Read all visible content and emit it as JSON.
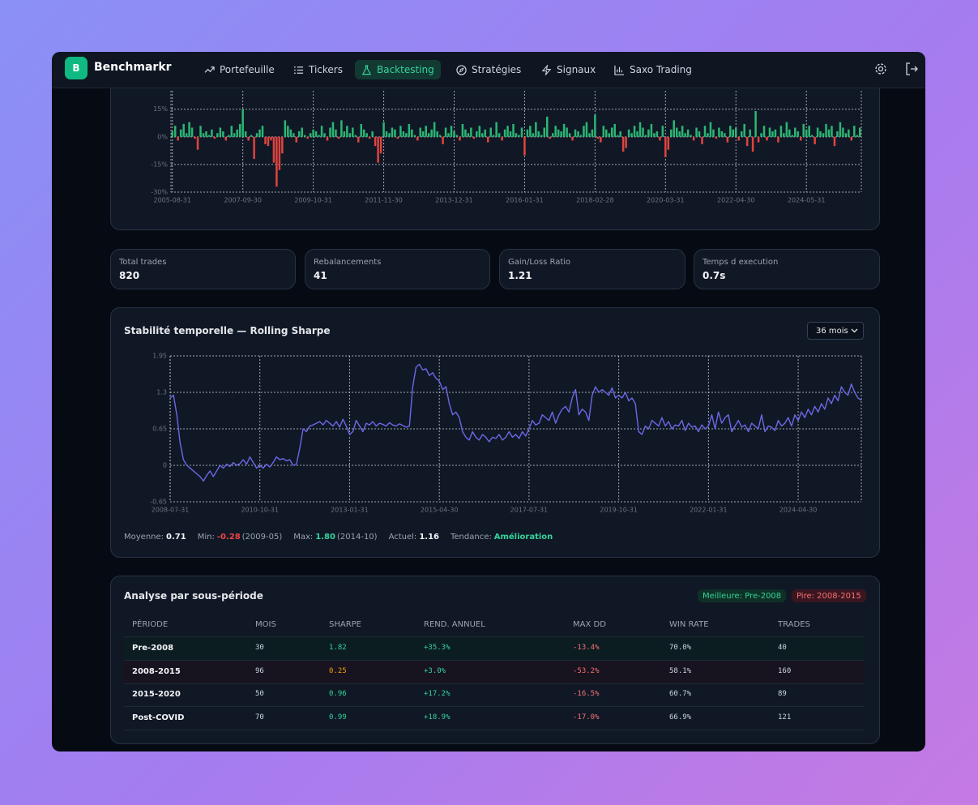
{
  "nav": {
    "logo": "B",
    "brand": "Benchmarkr",
    "items": [
      "Portefeuille",
      "Tickers",
      "Backtesting",
      "Stratégies",
      "Signaux",
      "Saxo Trading"
    ]
  },
  "stats": [
    {
      "label": "Total trades",
      "value": "820"
    },
    {
      "label": "Rebalancements",
      "value": "41"
    },
    {
      "label": "Gain/Loss Ratio",
      "value": "1.21"
    },
    {
      "label": "Temps d execution",
      "value": "0.7s"
    }
  ],
  "sharpe_panel": {
    "select": "36 mois",
    "summary": [
      {
        "label": "Moyenne:",
        "value": "0.71"
      },
      {
        "label": "Min:",
        "value": "-0.28",
        "note": "(2009-05)"
      },
      {
        "label": "Max:",
        "value": "1.80",
        "note": "(2014-10)"
      },
      {
        "label": "Actuel:",
        "value": "1.16"
      },
      {
        "label": "Tendance:",
        "value": "Amélioration"
      }
    ]
  },
  "table": {
    "title": "Analyse par sous-période",
    "badges": [
      "Meilleure: Pre-2008",
      "Pire: 2008-2015"
    ],
    "columns": [
      "PÉRIODE",
      "MOIS",
      "SHARPE",
      "REND. ANNUEL",
      "MAX DD",
      "WIN RATE",
      "TRADES"
    ],
    "rows": [
      [
        "Pre-2008",
        "30",
        "1.82",
        "+35.3%",
        "-13.4%",
        "70.0%",
        "40"
      ],
      [
        "2008-2015",
        "96",
        "0.25",
        "+3.0%",
        "-53.2%",
        "58.1%",
        "160"
      ],
      [
        "2015-2020",
        "50",
        "0.96",
        "+17.2%",
        "-16.5%",
        "60.7%",
        "89"
      ],
      [
        "Post-COVID",
        "70",
        "0.99",
        "+18.9%",
        "-17.0%",
        "66.9%",
        "121"
      ]
    ]
  },
  "chart_data": [
    {
      "type": "bar",
      "colors": {
        "positive": "#2bb673",
        "negative": "#e0443f"
      },
      "grid": true,
      "ylim": [
        -30,
        25
      ],
      "yticks": [
        {
          "value": 15,
          "label": "15%"
        },
        {
          "value": 0,
          "label": "0%"
        },
        {
          "value": -15,
          "label": "-15%"
        },
        {
          "value": -30,
          "label": "-30%"
        }
      ],
      "categories": [
        "2005-08-31",
        null,
        null,
        null,
        null,
        null,
        null,
        null,
        null,
        null,
        null,
        null,
        null,
        null,
        null,
        null,
        null,
        null,
        null,
        null,
        null,
        null,
        null,
        null,
        null,
        "2007-09-30",
        null,
        null,
        null,
        null,
        null,
        null,
        null,
        null,
        null,
        null,
        null,
        null,
        null,
        null,
        null,
        null,
        null,
        null,
        null,
        null,
        null,
        null,
        null,
        null,
        "2009-10-31",
        null,
        null,
        null,
        null,
        null,
        null,
        null,
        null,
        null,
        null,
        null,
        null,
        null,
        null,
        null,
        null,
        null,
        null,
        null,
        null,
        null,
        null,
        null,
        null,
        "2011-11-30",
        null,
        null,
        null,
        null,
        null,
        null,
        null,
        null,
        null,
        null,
        null,
        null,
        null,
        null,
        null,
        null,
        null,
        null,
        null,
        null,
        null,
        null,
        null,
        null,
        "2013-12-31",
        null,
        null,
        null,
        null,
        null,
        null,
        null,
        null,
        null,
        null,
        null,
        null,
        null,
        null,
        null,
        null,
        null,
        null,
        null,
        null,
        null,
        null,
        null,
        null,
        "2016-01-31",
        null,
        null,
        null,
        null,
        null,
        null,
        null,
        null,
        null,
        null,
        null,
        null,
        null,
        null,
        null,
        null,
        null,
        null,
        null,
        null,
        null,
        null,
        null,
        null,
        "2018-02-28",
        null,
        null,
        null,
        null,
        null,
        null,
        null,
        null,
        null,
        null,
        null,
        null,
        null,
        null,
        null,
        null,
        null,
        null,
        null,
        null,
        null,
        null,
        null,
        null,
        "2020-03-31",
        null,
        null,
        null,
        null,
        null,
        null,
        null,
        null,
        null,
        null,
        null,
        null,
        null,
        null,
        null,
        null,
        null,
        null,
        null,
        null,
        null,
        null,
        null,
        null,
        "2022-04-30",
        null,
        null,
        null,
        null,
        null,
        null,
        null,
        null,
        null,
        null,
        null,
        null,
        null,
        null,
        null,
        null,
        null,
        null,
        null,
        null,
        null,
        null,
        null,
        null,
        "2024-05-31",
        null,
        null,
        null,
        null,
        null,
        null,
        null,
        null,
        null,
        null,
        null,
        null,
        null,
        null,
        null,
        null,
        null,
        null,
        null
      ],
      "values": [
        3,
        6,
        -2,
        4,
        7,
        2,
        8,
        5,
        -1,
        -7,
        6,
        2,
        3,
        1,
        4,
        -1,
        2,
        5,
        3,
        -2,
        1,
        6,
        2,
        4,
        7,
        15,
        3,
        -2,
        1,
        -12,
        2,
        4,
        6,
        -4,
        -5,
        -2,
        -14,
        -27,
        -18,
        -9,
        9,
        6,
        4,
        2,
        -3,
        3,
        5,
        1,
        -1,
        2,
        4,
        3,
        1,
        6,
        2,
        -2,
        5,
        8,
        4,
        -1,
        9,
        3,
        6,
        2,
        5,
        1,
        -3,
        7,
        4,
        2,
        -1,
        3,
        -5,
        -14,
        -9,
        8,
        3,
        2,
        5,
        4,
        -1,
        6,
        3,
        2,
        7,
        4,
        1,
        -2,
        5,
        3,
        6,
        2,
        4,
        8,
        3,
        1,
        -4,
        5,
        2,
        6,
        3,
        1,
        -2,
        7,
        4,
        2,
        5,
        -1,
        3,
        6,
        2,
        4,
        -3,
        5,
        1,
        8,
        2,
        -2,
        4,
        6,
        3,
        7,
        2,
        1,
        5,
        -10,
        4,
        6,
        2,
        8,
        3,
        1,
        5,
        11,
        -1,
        2,
        6,
        4,
        3,
        7,
        5,
        2,
        -2,
        4,
        3,
        1,
        6,
        8,
        2,
        4,
        12,
        -1,
        -3,
        6,
        4,
        2,
        5,
        7,
        1,
        3,
        -8,
        -6,
        4,
        2,
        6,
        3,
        8,
        5,
        1,
        4,
        7,
        2,
        3,
        -2,
        6,
        -11,
        -7,
        4,
        9,
        5,
        3,
        6,
        2,
        4,
        1,
        -2,
        5,
        3,
        -4,
        6,
        2,
        8,
        4,
        -1,
        5,
        3,
        2,
        -3,
        6,
        4,
        5,
        -2,
        3,
        7,
        -5,
        4,
        -8,
        14,
        -3,
        2,
        6,
        -2,
        5,
        3,
        4,
        -3,
        6,
        2,
        8,
        4,
        1,
        5,
        3,
        -2,
        7,
        4,
        6,
        1,
        -4,
        5,
        3,
        2,
        7,
        4,
        6,
        -5,
        3,
        8,
        5,
        2,
        4,
        -2,
        6,
        1,
        5
      ]
    },
    {
      "type": "line",
      "title": "Stabilité temporelle — Rolling Sharpe",
      "color": "#6c67e6",
      "grid": true,
      "ylim": [
        -0.65,
        1.95
      ],
      "yticks": [
        1.95,
        1.3,
        0.65,
        0,
        -0.65
      ],
      "categories": [
        "2008-07-31",
        null,
        null,
        null,
        null,
        null,
        null,
        null,
        null,
        null,
        null,
        null,
        null,
        null,
        null,
        null,
        null,
        null,
        null,
        null,
        null,
        null,
        null,
        null,
        null,
        null,
        null,
        "2010-10-31",
        null,
        null,
        null,
        null,
        null,
        null,
        null,
        null,
        null,
        null,
        null,
        null,
        null,
        null,
        null,
        null,
        null,
        null,
        null,
        null,
        null,
        null,
        null,
        null,
        null,
        null,
        "2013-01-31",
        null,
        null,
        null,
        null,
        null,
        null,
        null,
        null,
        null,
        null,
        null,
        null,
        null,
        null,
        null,
        null,
        null,
        null,
        null,
        null,
        null,
        null,
        null,
        null,
        null,
        null,
        "2015-04-30",
        null,
        null,
        null,
        null,
        null,
        null,
        null,
        null,
        null,
        null,
        null,
        null,
        null,
        null,
        null,
        null,
        null,
        null,
        null,
        null,
        null,
        null,
        null,
        null,
        null,
        null,
        "2017-07-31",
        null,
        null,
        null,
        null,
        null,
        null,
        null,
        null,
        null,
        null,
        null,
        null,
        null,
        null,
        null,
        null,
        null,
        null,
        null,
        null,
        null,
        null,
        null,
        null,
        null,
        null,
        "2019-10-31",
        null,
        null,
        null,
        null,
        null,
        null,
        null,
        null,
        null,
        null,
        null,
        null,
        null,
        null,
        null,
        null,
        null,
        null,
        null,
        null,
        null,
        null,
        null,
        null,
        null,
        null,
        "2022-01-31",
        null,
        null,
        null,
        null,
        null,
        null,
        null,
        null,
        null,
        null,
        null,
        null,
        null,
        null,
        null,
        null,
        null,
        null,
        null,
        null,
        null,
        null,
        null,
        null,
        null,
        null,
        "2024-04-30",
        null,
        null,
        null,
        null,
        null,
        null,
        null,
        null,
        null,
        null,
        null,
        null,
        null,
        null,
        null,
        null,
        null,
        null,
        null
      ],
      "values": [
        1.2,
        1.25,
        0.9,
        0.4,
        0.1,
        0.0,
        -0.05,
        -0.1,
        -0.15,
        -0.2,
        -0.28,
        -0.18,
        -0.1,
        -0.2,
        -0.1,
        0.0,
        -0.05,
        0.02,
        -0.02,
        0.05,
        0.0,
        0.03,
        0.1,
        0.02,
        0.15,
        0.05,
        -0.05,
        0.0,
        -0.05,
        0.02,
        -0.03,
        0.05,
        0.15,
        0.1,
        0.12,
        0.08,
        0.1,
        0.0,
        0.02,
        0.3,
        0.65,
        0.6,
        0.7,
        0.72,
        0.75,
        0.78,
        0.72,
        0.8,
        0.75,
        0.7,
        0.78,
        0.68,
        0.82,
        0.7,
        0.55,
        0.6,
        0.8,
        0.7,
        0.6,
        0.75,
        0.72,
        0.78,
        0.7,
        0.75,
        0.73,
        0.7,
        0.76,
        0.72,
        0.7,
        0.74,
        0.71,
        0.68,
        0.7,
        1.4,
        1.75,
        1.8,
        1.7,
        1.72,
        1.6,
        1.65,
        1.55,
        1.5,
        1.35,
        1.4,
        1.1,
        0.9,
        0.95,
        0.85,
        0.6,
        0.5,
        0.45,
        0.6,
        0.5,
        0.45,
        0.55,
        0.5,
        0.42,
        0.5,
        0.48,
        0.55,
        0.45,
        0.5,
        0.6,
        0.5,
        0.55,
        0.48,
        0.6,
        0.52,
        0.65,
        0.8,
        0.72,
        0.75,
        0.9,
        0.85,
        0.8,
        0.95,
        0.75,
        0.9,
        1.0,
        1.05,
        0.95,
        1.2,
        1.35,
        0.9,
        1.0,
        0.95,
        0.8,
        1.25,
        1.4,
        1.3,
        1.35,
        1.3,
        1.25,
        1.38,
        1.2,
        1.25,
        1.2,
        1.3,
        1.15,
        1.2,
        1.1,
        0.6,
        0.55,
        0.7,
        0.65,
        0.8,
        0.75,
        0.7,
        0.85,
        0.7,
        0.78,
        0.65,
        0.72,
        0.7,
        0.8,
        0.62,
        0.75,
        0.68,
        0.7,
        0.6,
        0.72,
        0.65,
        0.7,
        0.9,
        0.65,
        0.95,
        0.75,
        0.85,
        0.9,
        0.6,
        0.7,
        0.8,
        0.68,
        0.72,
        0.6,
        0.75,
        0.7,
        0.65,
        0.9,
        0.6,
        0.7,
        0.68,
        0.62,
        0.8,
        0.7,
        0.75,
        0.85,
        0.7,
        0.9,
        0.8,
        0.95,
        0.85,
        1.0,
        0.9,
        1.05,
        0.95,
        1.1,
        1.0,
        1.2,
        1.1,
        1.25,
        1.15,
        1.4,
        1.3,
        1.25,
        1.45,
        1.3,
        1.2,
        1.16
      ]
    }
  ]
}
